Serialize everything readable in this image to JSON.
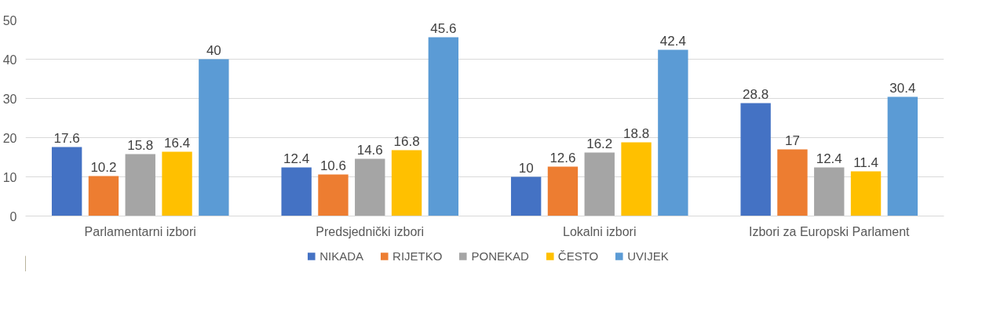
{
  "chart_data": {
    "type": "bar",
    "categories": [
      "Parlamentarni izbori",
      "Predsjednički izbori",
      "Lokalni izbori",
      "Izbori za Europski Parlament"
    ],
    "series": [
      {
        "name": "NIKADA",
        "color": "#4472c4",
        "values": [
          17.6,
          12.4,
          10,
          28.8
        ]
      },
      {
        "name": "RIJETKO",
        "color": "#ed7d31",
        "values": [
          10.2,
          10.6,
          12.6,
          17
        ]
      },
      {
        "name": "PONEKAD",
        "color": "#a5a5a5",
        "values": [
          15.8,
          14.6,
          16.2,
          12.4
        ]
      },
      {
        "name": "ČESTO",
        "color": "#ffc000",
        "values": [
          16.4,
          16.8,
          18.8,
          11.4
        ]
      },
      {
        "name": "UVIJEK",
        "color": "#5b9bd5",
        "values": [
          40,
          45.6,
          42.4,
          30.4
        ]
      }
    ],
    "ylim": [
      0,
      50
    ],
    "yticks": [
      0,
      10,
      20,
      30,
      40,
      50
    ],
    "grid": "y",
    "legend": "bottom",
    "data_labels": true
  }
}
